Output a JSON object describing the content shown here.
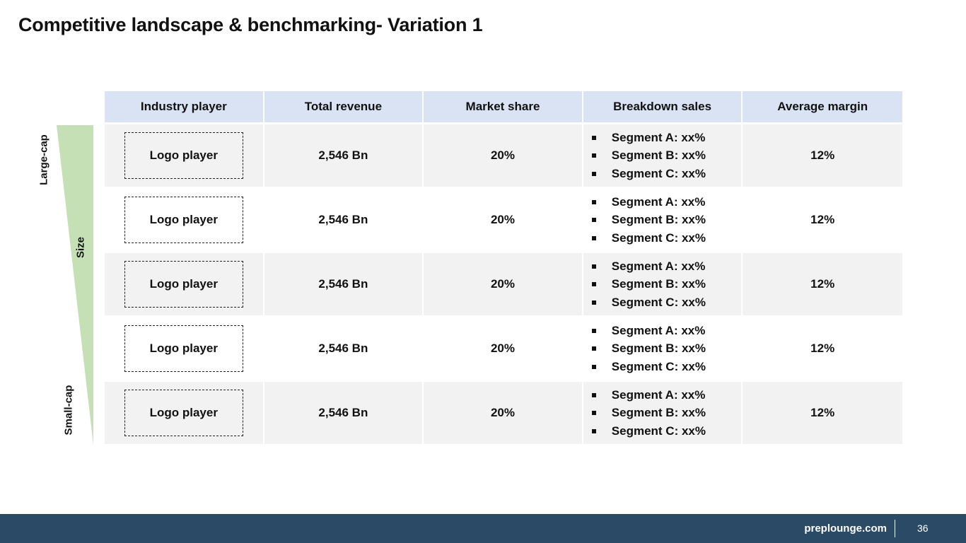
{
  "slide": {
    "title": "Competitive landscape & benchmarking- Variation 1",
    "size_axis": {
      "top_label": "Large-cap",
      "middle_label": "Size",
      "bottom_label": "Small-cap",
      "color": "#c5e0b4"
    },
    "table": {
      "headers": [
        "Industry player",
        "Total revenue",
        "Market share",
        "Breakdown sales",
        "Average margin"
      ],
      "header_color": "#dae3f3",
      "rows": [
        {
          "player": "Logo player",
          "revenue": "2,546 Bn",
          "share": "20%",
          "segments": [
            "Segment A: xx%",
            "Segment B: xx%",
            "Segment C: xx%"
          ],
          "margin": "12%"
        },
        {
          "player": "Logo player",
          "revenue": "2,546 Bn",
          "share": "20%",
          "segments": [
            "Segment A: xx%",
            "Segment B: xx%",
            "Segment C: xx%"
          ],
          "margin": "12%"
        },
        {
          "player": "Logo player",
          "revenue": "2,546 Bn",
          "share": "20%",
          "segments": [
            "Segment A: xx%",
            "Segment B: xx%",
            "Segment C: xx%"
          ],
          "margin": "12%"
        },
        {
          "player": "Logo player",
          "revenue": "2,546 Bn",
          "share": "20%",
          "segments": [
            "Segment A: xx%",
            "Segment B: xx%",
            "Segment C: xx%"
          ],
          "margin": "12%"
        },
        {
          "player": "Logo player",
          "revenue": "2,546 Bn",
          "share": "20%",
          "segments": [
            "Segment A: xx%",
            "Segment B: xx%",
            "Segment C: xx%"
          ],
          "margin": "12%"
        }
      ]
    }
  },
  "footer": {
    "site": "preplounge.com",
    "page_number": "36",
    "color": "#2a4a66"
  }
}
